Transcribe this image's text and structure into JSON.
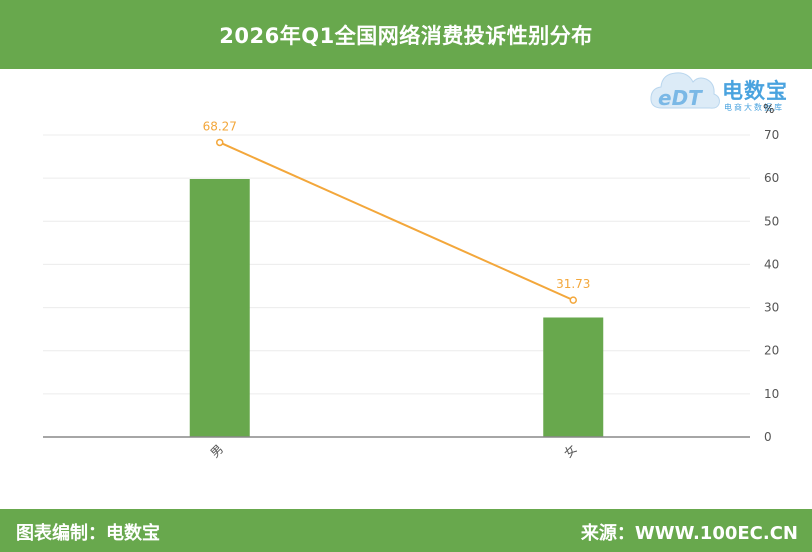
{
  "header": {
    "title": "2026年Q1全国网络消费投诉性别分布"
  },
  "logo": {
    "brand": "电数宝",
    "sub": "电商大数据库",
    "icon_text": "eDT"
  },
  "footer": {
    "left": "图表编制：电数宝",
    "right": "来源：WWW.100EC.CN"
  },
  "chart_data": {
    "type": "bar+line",
    "categories": [
      "男",
      "女"
    ],
    "series": [
      {
        "type": "bar",
        "values": [
          59.8,
          27.7
        ],
        "color": "#68a84d"
      },
      {
        "type": "line",
        "values": [
          68.27,
          31.73
        ],
        "color": "#f3a73b",
        "labels": [
          "68.27",
          "31.73"
        ]
      }
    ],
    "y_unit": "%",
    "ylim": [
      0,
      70
    ],
    "yticks": [
      0,
      10,
      20,
      30,
      40,
      50,
      60,
      70
    ],
    "y_axis_side": "right",
    "grid": true
  }
}
